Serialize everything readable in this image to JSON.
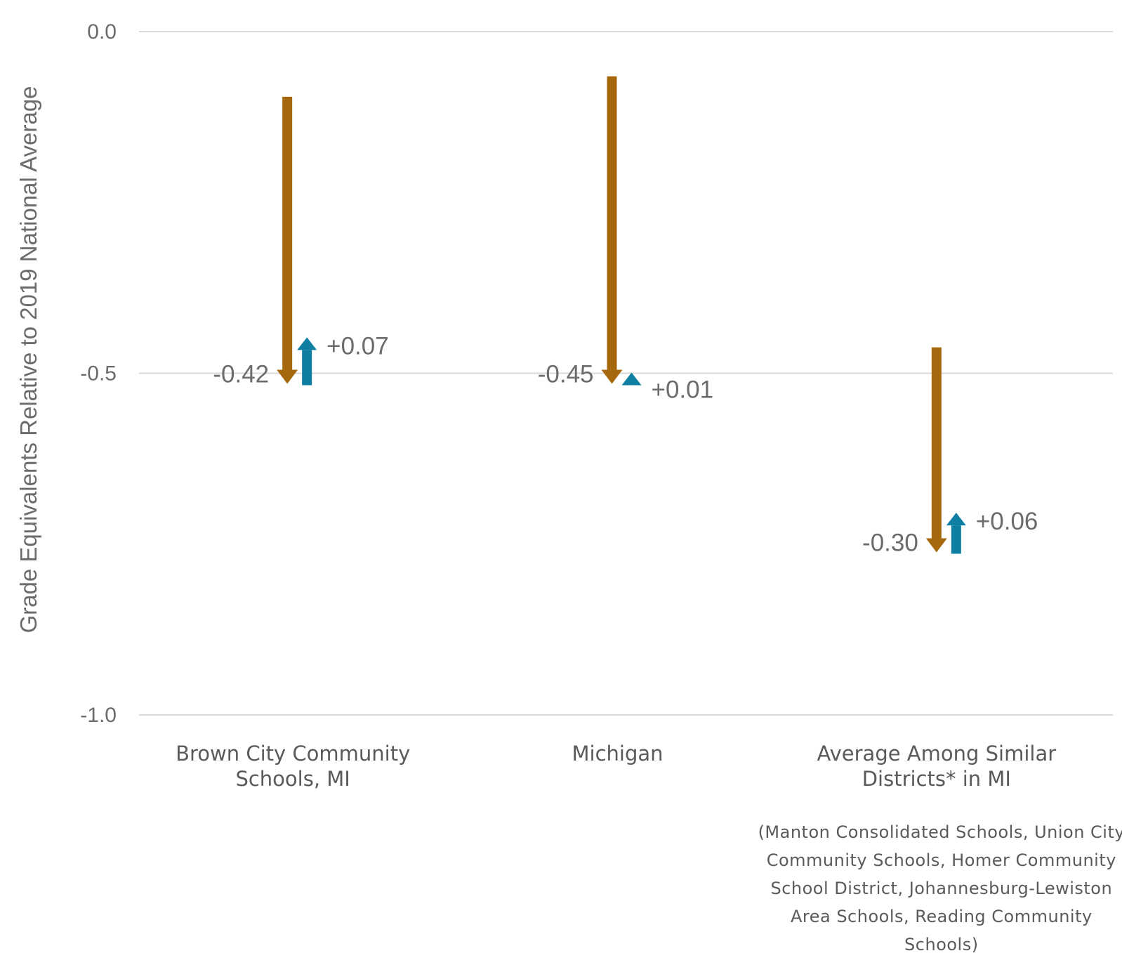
{
  "chart_data": {
    "type": "arrow-change",
    "ylabel": "Grade Equivalents Relative to 2019 National Average",
    "ylim": [
      -1.0,
      0.0
    ],
    "yticks": [
      {
        "value": 0.0,
        "label": "0.0"
      },
      {
        "value": -0.5,
        "label": "-0.5"
      },
      {
        "value": -1.0,
        "label": "-1.0"
      }
    ],
    "grid": true,
    "colors": {
      "decline": "#a5680c",
      "recovery": "#0e7fa3",
      "grid": "#d9d9d9"
    },
    "categories": [
      {
        "label_lines": [
          "Brown City Community",
          "Schools, MI"
        ],
        "decline": -0.42,
        "decline_label": "-0.42",
        "recovery": 0.07,
        "recovery_label": "+0.07"
      },
      {
        "label_lines": [
          "Michigan"
        ],
        "decline": -0.45,
        "decline_label": "-0.45",
        "recovery": 0.01,
        "recovery_label": "+0.01"
      },
      {
        "label_lines": [
          "Average Among Similar",
          "Districts* in MI"
        ],
        "decline": -0.3,
        "decline_label": "-0.30",
        "recovery": 0.06,
        "recovery_label": "+0.06"
      }
    ],
    "note_lines": [
      "(Manton Consolidated Schools, Union City",
      "Community Schools, Homer Community",
      "School District, Johannesburg-Lewiston",
      "Area Schools, Reading Community",
      "Schools)"
    ]
  }
}
